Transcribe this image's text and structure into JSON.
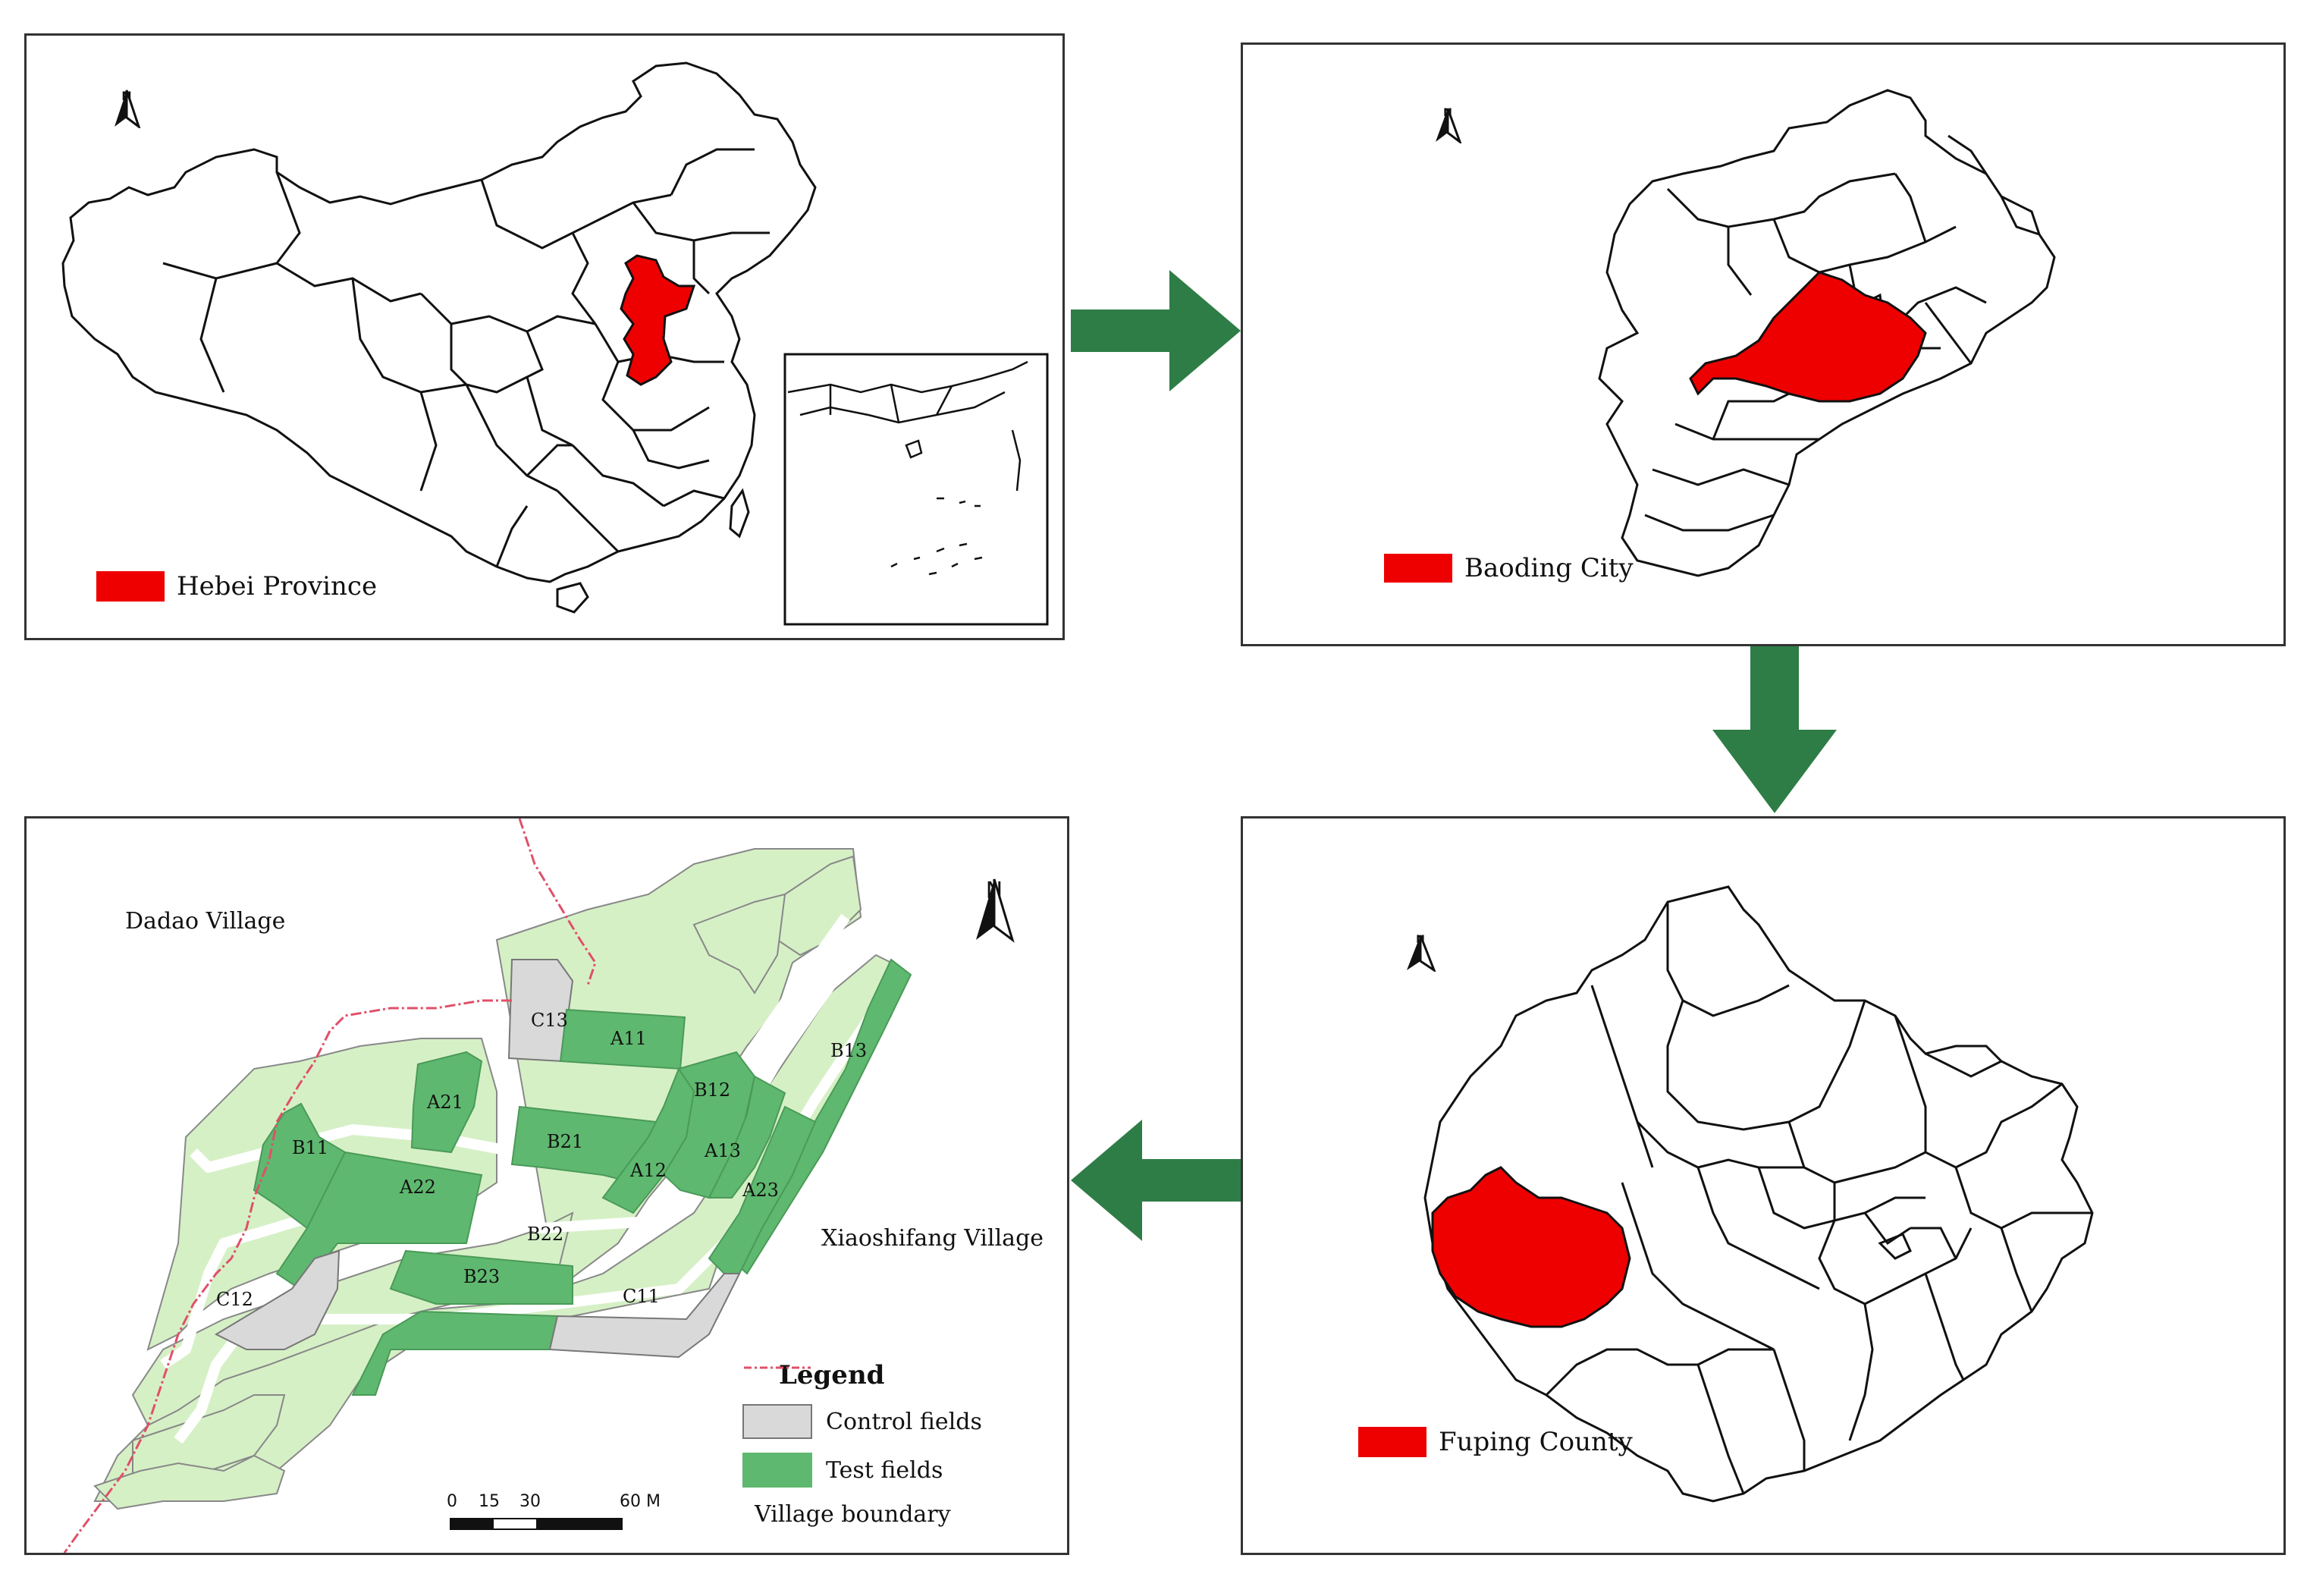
{
  "colors": {
    "highlight": "#ee0000",
    "arrow": "#2e7d46",
    "test_field": "#5fb86f",
    "control_field": "#d9d9d9",
    "other_field": "#d6f0c6",
    "village_boundary": "#e0506a",
    "outline": "#111111"
  },
  "panels": {
    "china": {
      "north_label": "N",
      "legend_label": "Hebei Province"
    },
    "hebei": {
      "north_label": "N",
      "legend_label": "Baoding City"
    },
    "baoding": {
      "north_label": "N",
      "legend_label": "Fuping County"
    },
    "site": {
      "north_label": "N",
      "village_labels": {
        "dadao": "Dadao Village",
        "xiaoshifang": "Xiaoshifang Village"
      },
      "fields": [
        {
          "id": "C13",
          "kind": "control"
        },
        {
          "id": "A11",
          "kind": "test"
        },
        {
          "id": "B12",
          "kind": "test"
        },
        {
          "id": "B13",
          "kind": "test"
        },
        {
          "id": "A21",
          "kind": "test"
        },
        {
          "id": "B21",
          "kind": "test"
        },
        {
          "id": "B11",
          "kind": "test"
        },
        {
          "id": "A12",
          "kind": "test"
        },
        {
          "id": "A13",
          "kind": "test"
        },
        {
          "id": "A22",
          "kind": "test"
        },
        {
          "id": "A23",
          "kind": "test"
        },
        {
          "id": "B22",
          "kind": "test"
        },
        {
          "id": "B23",
          "kind": "test"
        },
        {
          "id": "C11",
          "kind": "control"
        },
        {
          "id": "C12",
          "kind": "control"
        }
      ],
      "legend": {
        "title": "Legend",
        "control_label": "Control fields",
        "test_label": "Test fields",
        "boundary_label": "Village boundary"
      },
      "scale_bar": {
        "ticks": [
          "0",
          "15",
          "30",
          "60 M"
        ]
      }
    }
  },
  "flow_arrows": [
    {
      "direction": "right",
      "from": "china",
      "to": "hebei"
    },
    {
      "direction": "down",
      "from": "hebei",
      "to": "baoding"
    },
    {
      "direction": "left",
      "from": "baoding",
      "to": "site"
    }
  ]
}
